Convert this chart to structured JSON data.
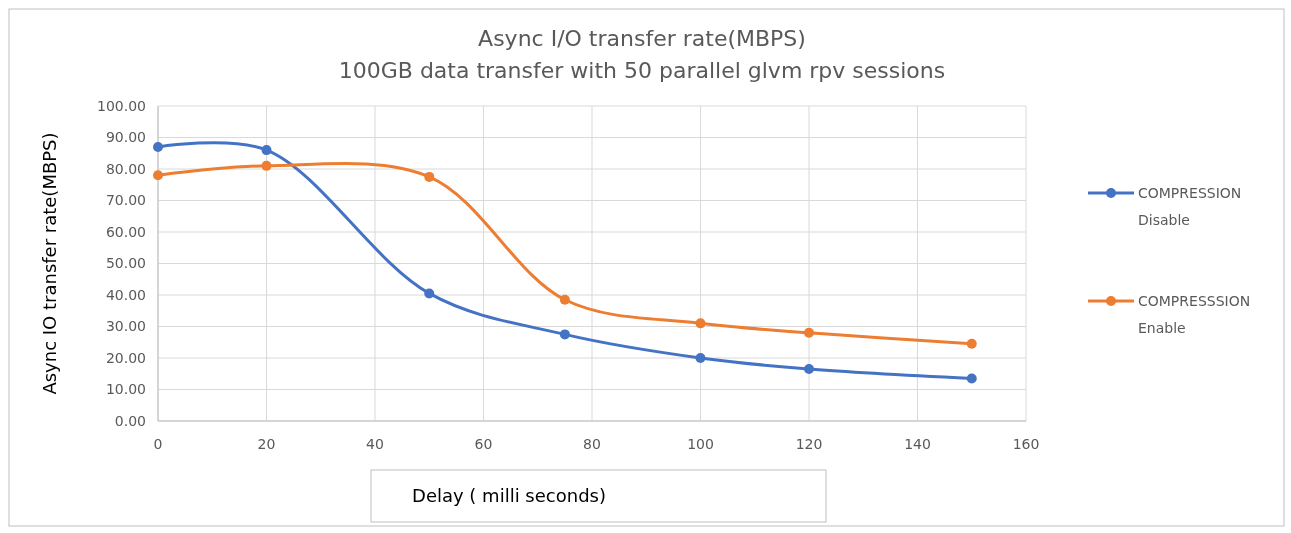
{
  "chart_data": {
    "type": "line",
    "title": "Async I/O transfer rate(MBPS)",
    "subtitle": "100GB data transfer with 50 parallel glvm rpv sessions",
    "xlabel": "Delay ( milli seconds)",
    "ylabel": "Async IO transfer rate(MBPS)",
    "x": [
      0,
      20,
      50,
      75,
      100,
      120,
      150
    ],
    "series": [
      {
        "name": "COMPRESSION Disable",
        "color": "#4472c4",
        "values": [
          87,
          86,
          40.5,
          27.5,
          20,
          16.5,
          13.5
        ]
      },
      {
        "name": "COMPRESSSION Enable",
        "color": "#ed7d31",
        "values": [
          78,
          81,
          77.5,
          38.5,
          31,
          28,
          24.5
        ]
      }
    ],
    "xlim": [
      0,
      160
    ],
    "xticks": [
      0,
      20,
      40,
      60,
      80,
      100,
      120,
      140,
      160
    ],
    "ylim": [
      0,
      100
    ],
    "yticks": [
      {
        "value": 0,
        "label": "0.00"
      },
      {
        "value": 10,
        "label": "10.00"
      },
      {
        "value": 20,
        "label": "20.00"
      },
      {
        "value": 30,
        "label": "30.00"
      },
      {
        "value": 40,
        "label": "40.00"
      },
      {
        "value": 50,
        "label": "50.00"
      },
      {
        "value": 60,
        "label": "60.00"
      },
      {
        "value": 70,
        "label": "70.00"
      },
      {
        "value": 80,
        "label": "80.00"
      },
      {
        "value": 90,
        "label": "90.00"
      },
      {
        "value": 100,
        "label": "100.00"
      }
    ],
    "grid": true,
    "legend": "right",
    "marker": "circle",
    "line_style": "solid"
  }
}
